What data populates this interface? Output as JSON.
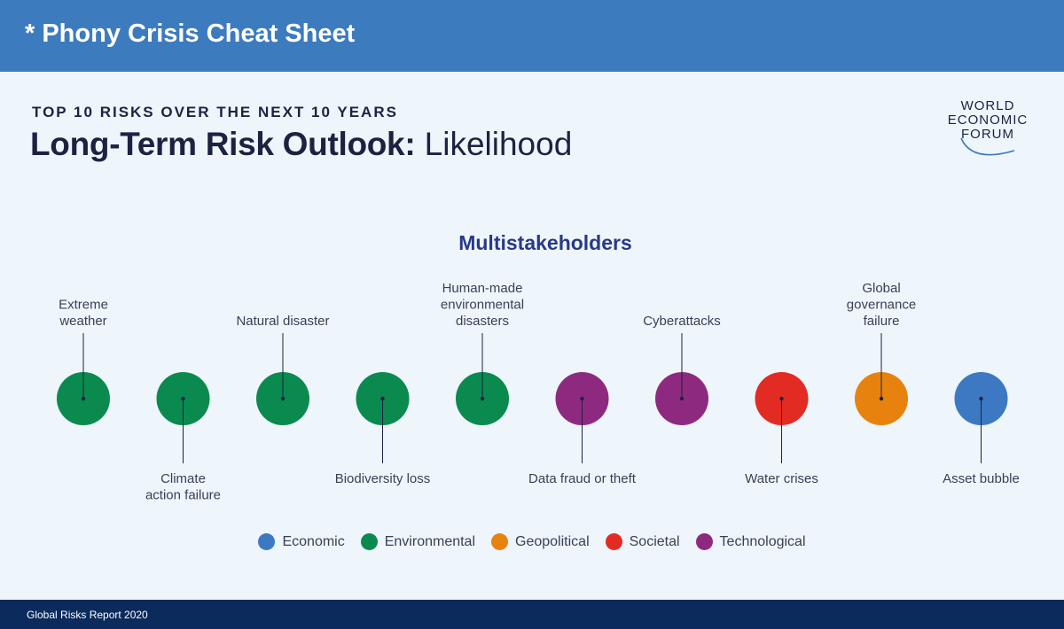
{
  "banner": {
    "title": "* Phony Crisis Cheat Sheet"
  },
  "header": {
    "subtitle": "TOP 10 RISKS OVER THE NEXT 10 YEARS",
    "title_bold": "Long-Term Risk Outlook:",
    "title_light": "Likelihood"
  },
  "logo": {
    "line1": "WORLD",
    "line2": "ECONOMIC",
    "line3": "FORUM"
  },
  "footer": {
    "text": "Global Risks Report 2020"
  },
  "colors": {
    "Economic": "#3c79c2",
    "Environmental": "#0a8a4e",
    "Geopolitical": "#e8820f",
    "Societal": "#e22b23",
    "Technological": "#8d2a7f"
  },
  "chart_data": {
    "type": "scatter",
    "title": "Multistakeholders",
    "subtitle": "TOP 10 RISKS OVER THE NEXT 10 YEARS",
    "risks": [
      {
        "rank": 1,
        "label": [
          "Extreme",
          "weather"
        ],
        "category": "Environmental",
        "label_position": "top"
      },
      {
        "rank": 2,
        "label": [
          "Climate",
          "action failure"
        ],
        "category": "Environmental",
        "label_position": "bottom"
      },
      {
        "rank": 3,
        "label": [
          "Natural disaster"
        ],
        "category": "Environmental",
        "label_position": "top"
      },
      {
        "rank": 4,
        "label": [
          "Biodiversity loss"
        ],
        "category": "Environmental",
        "label_position": "bottom"
      },
      {
        "rank": 5,
        "label": [
          "Human-made",
          "environmental",
          "disasters"
        ],
        "category": "Environmental",
        "label_position": "top"
      },
      {
        "rank": 6,
        "label": [
          "Data fraud or theft"
        ],
        "category": "Technological",
        "label_position": "bottom"
      },
      {
        "rank": 7,
        "label": [
          "Cyberattacks"
        ],
        "category": "Technological",
        "label_position": "top"
      },
      {
        "rank": 8,
        "label": [
          "Water crises"
        ],
        "category": "Societal",
        "label_position": "bottom"
      },
      {
        "rank": 9,
        "label": [
          "Global",
          "governance",
          "failure"
        ],
        "category": "Geopolitical",
        "label_position": "top"
      },
      {
        "rank": 10,
        "label": [
          "Asset bubble"
        ],
        "category": "Economic",
        "label_position": "bottom"
      }
    ],
    "legend": [
      "Economic",
      "Environmental",
      "Geopolitical",
      "Societal",
      "Technological"
    ],
    "legend_position": "bottom"
  }
}
